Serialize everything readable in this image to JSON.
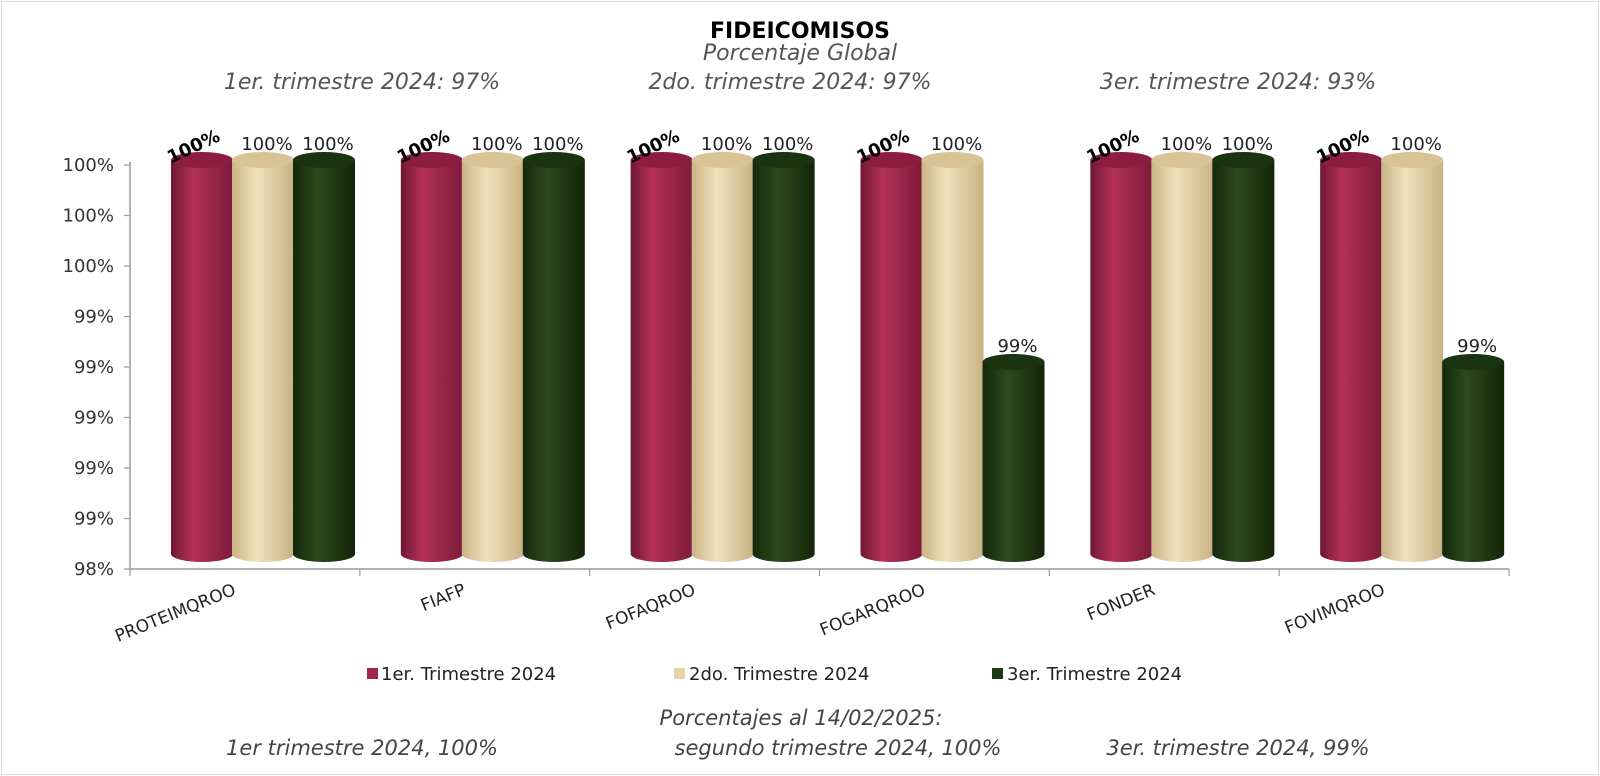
{
  "chart_data": {
    "type": "bar",
    "title": "FIDEICOMISOS",
    "subtitle": "Porcentaje Global",
    "top_notes": [
      "1er. trimestre 2024: 97%",
      "2do. trimestre 2024: 97%",
      "3er. trimestre 2024: 93%"
    ],
    "categories": [
      "PROTEIMQROO",
      "FIAFP",
      "FOFAQROO",
      "FOGARQROO",
      "FONDER",
      "FOVIMQROO"
    ],
    "series": [
      {
        "name": "1er. Trimestre 2024",
        "color": "#a0234b",
        "values": [
          100,
          100,
          100,
          100,
          100,
          100
        ],
        "labels": [
          "100%",
          "100%",
          "100%",
          "100%",
          "100%",
          "100%"
        ]
      },
      {
        "name": "2do. Trimestre 2024",
        "color": "#e6d3a7",
        "values": [
          100,
          100,
          100,
          100,
          100,
          100
        ],
        "labels": [
          "100%",
          "100%",
          "100%",
          "100%",
          "100%",
          "100%"
        ]
      },
      {
        "name": "3er. Trimestre 2024",
        "color": "#1f3a13",
        "values": [
          100,
          100,
          100,
          99,
          100,
          99
        ],
        "labels": [
          "100%",
          "100%",
          "100%",
          "99%",
          "100%",
          "99%"
        ]
      }
    ],
    "ylim": [
      98,
      100
    ],
    "ytick_labels": [
      "98%",
      "99%",
      "99%",
      "99%",
      "99%",
      "99%",
      "100%",
      "100%",
      "100%"
    ],
    "legend_position": "bottom",
    "grid": false
  },
  "footer": {
    "line1": "Porcentajes al 14/02/2025:",
    "notes": [
      "1er trimestre  2024,  100%",
      "segundo trimestre 2024, 100%",
      "3er. trimestre 2024, 99%"
    ]
  }
}
